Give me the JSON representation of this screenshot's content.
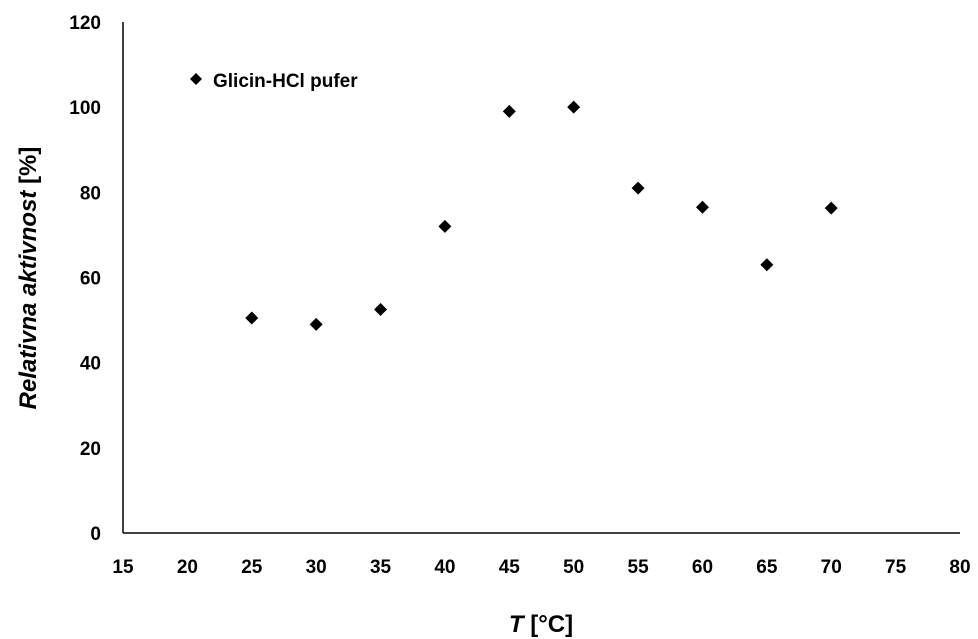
{
  "chart_data": {
    "type": "scatter",
    "title": "",
    "xlabel": {
      "var": "T",
      "unit": " [°C]"
    },
    "ylabel": {
      "var": "Relativna aktivnost",
      "unit": " [%]"
    },
    "xlim": [
      15,
      80
    ],
    "ylim": [
      0,
      120
    ],
    "xticks": [
      15,
      20,
      25,
      30,
      35,
      40,
      45,
      50,
      55,
      60,
      65,
      70,
      75,
      80
    ],
    "yticks": [
      0,
      20,
      40,
      60,
      80,
      100,
      120
    ],
    "grid": false,
    "legend_position": "top-left",
    "marker": "diamond",
    "marker_color": "#000000",
    "series": [
      {
        "name": "Glicin-HCl pufer",
        "points": [
          {
            "x": 25,
            "y": 50.5
          },
          {
            "x": 30,
            "y": 49
          },
          {
            "x": 35,
            "y": 52.5
          },
          {
            "x": 40,
            "y": 72
          },
          {
            "x": 45,
            "y": 99
          },
          {
            "x": 50,
            "y": 100
          },
          {
            "x": 55,
            "y": 81
          },
          {
            "x": 60,
            "y": 76.5
          },
          {
            "x": 65,
            "y": 63
          },
          {
            "x": 70,
            "y": 76.3
          }
        ]
      }
    ]
  }
}
